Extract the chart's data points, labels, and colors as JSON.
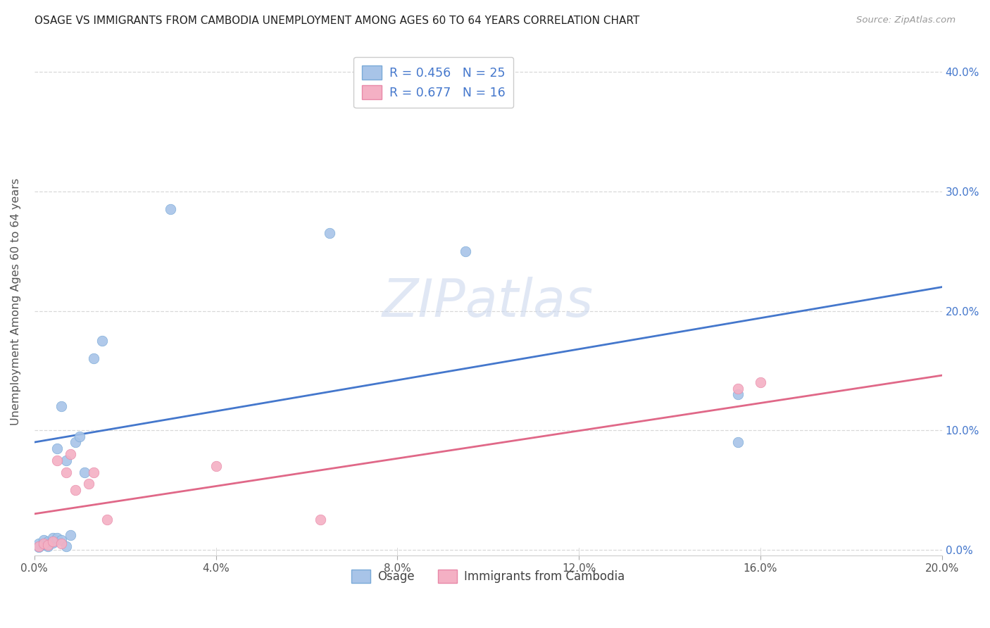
{
  "title": "OSAGE VS IMMIGRANTS FROM CAMBODIA UNEMPLOYMENT AMONG AGES 60 TO 64 YEARS CORRELATION CHART",
  "source": "Source: ZipAtlas.com",
  "ylabel": "Unemployment Among Ages 60 to 64 years",
  "xlim": [
    0.0,
    0.2
  ],
  "ylim": [
    -0.005,
    0.42
  ],
  "xticks": [
    0.0,
    0.04,
    0.08,
    0.12,
    0.16,
    0.2
  ],
  "yticks": [
    0.0,
    0.1,
    0.2,
    0.3,
    0.4
  ],
  "osage_x": [
    0.001,
    0.001,
    0.002,
    0.002,
    0.003,
    0.003,
    0.004,
    0.004,
    0.005,
    0.005,
    0.006,
    0.006,
    0.007,
    0.007,
    0.008,
    0.009,
    0.01,
    0.011,
    0.013,
    0.015,
    0.03,
    0.065,
    0.095,
    0.155,
    0.155
  ],
  "osage_y": [
    0.005,
    0.002,
    0.008,
    0.004,
    0.007,
    0.003,
    0.01,
    0.006,
    0.01,
    0.085,
    0.008,
    0.12,
    0.075,
    0.003,
    0.012,
    0.09,
    0.095,
    0.065,
    0.16,
    0.175,
    0.285,
    0.265,
    0.25,
    0.09,
    0.13
  ],
  "cambodia_x": [
    0.001,
    0.002,
    0.003,
    0.004,
    0.005,
    0.006,
    0.007,
    0.008,
    0.009,
    0.012,
    0.013,
    0.016,
    0.04,
    0.063,
    0.155,
    0.16
  ],
  "cambodia_y": [
    0.003,
    0.005,
    0.004,
    0.007,
    0.075,
    0.005,
    0.065,
    0.08,
    0.05,
    0.055,
    0.065,
    0.025,
    0.07,
    0.025,
    0.135,
    0.14
  ],
  "osage_color": "#a8c4e8",
  "cambodia_color": "#f4b0c4",
  "osage_edge_color": "#7aaad8",
  "cambodia_edge_color": "#e888a8",
  "osage_line_color": "#4477cc",
  "cambodia_line_color": "#e06888",
  "osage_line_intercept": 0.09,
  "osage_line_slope": 0.65,
  "cambodia_line_intercept": 0.03,
  "cambodia_line_slope": 0.58,
  "legend_text_1": "R = 0.456   N = 25",
  "legend_text_2": "R = 0.677   N = 16",
  "legend_label_osage": "Osage",
  "legend_label_cambodia": "Immigrants from Cambodia",
  "watermark": "ZIPatlas",
  "background_color": "#ffffff",
  "grid_color": "#d8d8d8",
  "ytick_color": "#4477cc",
  "xtick_color": "#555555"
}
